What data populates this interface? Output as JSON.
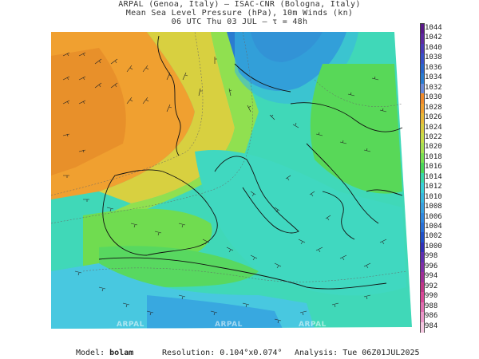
{
  "header": {
    "line1": "ARPAL (Genoa, Italy)  –  ISAC-CNR (Bologna, Italy)",
    "line2": "Mean Sea Level Pressure (hPa), 10m Winds (kn)",
    "line3": "06 UTC Thu 03 JUL  –  τ = 48h"
  },
  "legend": {
    "levels": [
      "1044",
      "1042",
      "1040",
      "1038",
      "1036",
      "1034",
      "1032",
      "1030",
      "1028",
      "1026",
      "1024",
      "1022",
      "1020",
      "1018",
      "1016",
      "1014",
      "1012",
      "1010",
      "1008",
      "1006",
      "1004",
      "1002",
      "1000",
      "998",
      "996",
      "994",
      "992",
      "990",
      "988",
      "986",
      "984"
    ],
    "colors": [
      "#5a1a8a",
      "#5e2aa0",
      "#4b3bb8",
      "#3950c8",
      "#2a66cc",
      "#2a7cd0",
      "#6a8ad8",
      "#f08a2a",
      "#f0a030",
      "#e8b838",
      "#d8cc40",
      "#c8dc48",
      "#a8e050",
      "#78e050",
      "#48d858",
      "#38d8a8",
      "#38d0d8",
      "#38b8e0",
      "#38a0e0",
      "#3088e0",
      "#2870d8",
      "#2050c8",
      "#3030b8",
      "#6030b0",
      "#8030a8",
      "#a03098",
      "#c03888",
      "#d84a98",
      "#e070b0",
      "#ea98c8",
      "#f4c8e0"
    ]
  },
  "footer": {
    "model_label": "Model: ",
    "model_value": "bolam",
    "resolution": "Resolution: 0.104°x0.074°",
    "analysis": "Analysis: Tue 06Z01JUL2025"
  },
  "watermarks": [
    "ARPAL",
    "ARPAL",
    "ARPAL"
  ]
}
